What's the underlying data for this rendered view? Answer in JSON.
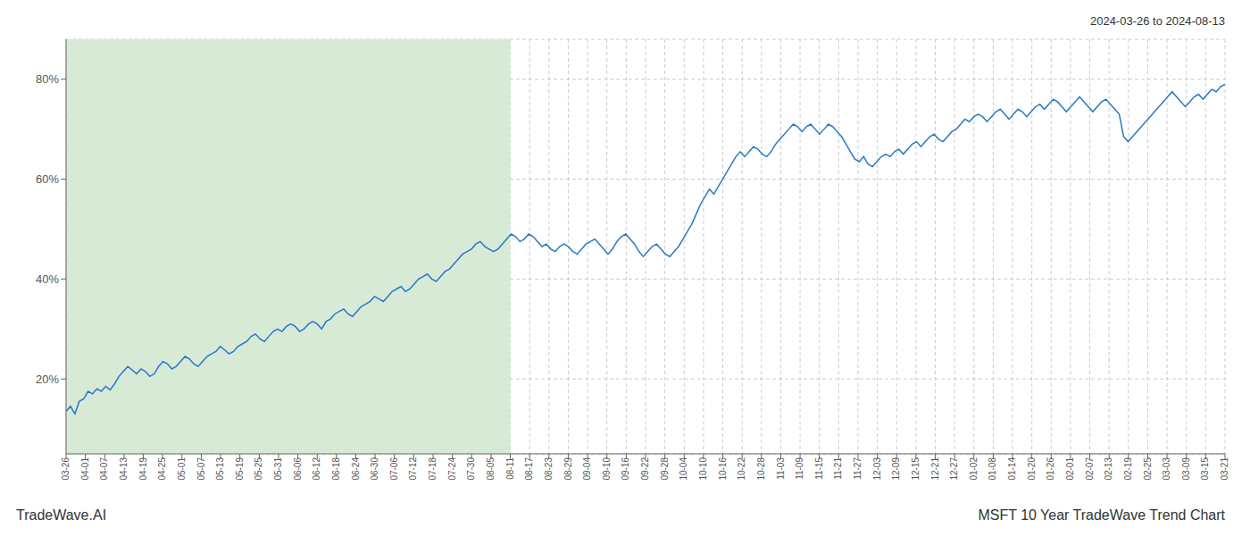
{
  "chart_data": {
    "type": "line",
    "title": "MSFT 10 Year TradeWave Trend Chart",
    "subtitle": "2024-03-26 to 2024-08-13",
    "annotations": [
      "TradeWave.AI"
    ],
    "grid": true,
    "xlim": [
      0,
      60
    ],
    "xticks": [
      {
        "value": 0,
        "label": "03-26"
      },
      {
        "value": 1,
        "label": "04-01"
      },
      {
        "value": 2,
        "label": "04-07"
      },
      {
        "value": 3,
        "label": "04-13"
      },
      {
        "value": 4,
        "label": "04-19"
      },
      {
        "value": 5,
        "label": "04-25"
      },
      {
        "value": 6,
        "label": "05-01"
      },
      {
        "value": 7,
        "label": "05-07"
      },
      {
        "value": 8,
        "label": "05-13"
      },
      {
        "value": 9,
        "label": "05-19"
      },
      {
        "value": 10,
        "label": "05-25"
      },
      {
        "value": 11,
        "label": "05-31"
      },
      {
        "value": 12,
        "label": "06-06"
      },
      {
        "value": 13,
        "label": "06-12"
      },
      {
        "value": 14,
        "label": "06-18"
      },
      {
        "value": 15,
        "label": "06-24"
      },
      {
        "value": 16,
        "label": "06-30"
      },
      {
        "value": 17,
        "label": "07-06"
      },
      {
        "value": 18,
        "label": "07-12"
      },
      {
        "value": 19,
        "label": "07-18"
      },
      {
        "value": 20,
        "label": "07-24"
      },
      {
        "value": 21,
        "label": "07-30"
      },
      {
        "value": 22,
        "label": "08-05"
      },
      {
        "value": 23,
        "label": "08-11"
      },
      {
        "value": 24,
        "label": "08-17"
      },
      {
        "value": 25,
        "label": "08-23"
      },
      {
        "value": 26,
        "label": "08-29"
      },
      {
        "value": 27,
        "label": "09-04"
      },
      {
        "value": 28,
        "label": "09-10"
      },
      {
        "value": 29,
        "label": "09-16"
      },
      {
        "value": 30,
        "label": "09-22"
      },
      {
        "value": 31,
        "label": "09-28"
      },
      {
        "value": 32,
        "label": "10-04"
      },
      {
        "value": 33,
        "label": "10-10"
      },
      {
        "value": 34,
        "label": "10-16"
      },
      {
        "value": 35,
        "label": "10-22"
      },
      {
        "value": 36,
        "label": "10-28"
      },
      {
        "value": 37,
        "label": "11-03"
      },
      {
        "value": 38,
        "label": "11-09"
      },
      {
        "value": 39,
        "label": "11-15"
      },
      {
        "value": 40,
        "label": "11-21"
      },
      {
        "value": 41,
        "label": "11-27"
      },
      {
        "value": 42,
        "label": "12-03"
      },
      {
        "value": 43,
        "label": "12-09"
      },
      {
        "value": 44,
        "label": "12-15"
      },
      {
        "value": 45,
        "label": "12-21"
      },
      {
        "value": 46,
        "label": "12-27"
      },
      {
        "value": 47,
        "label": "01-02"
      },
      {
        "value": 48,
        "label": "01-08"
      },
      {
        "value": 49,
        "label": "01-14"
      },
      {
        "value": 50,
        "label": "01-20"
      },
      {
        "value": 51,
        "label": "01-26"
      },
      {
        "value": 52,
        "label": "02-01"
      },
      {
        "value": 53,
        "label": "02-07"
      },
      {
        "value": 54,
        "label": "02-13"
      },
      {
        "value": 55,
        "label": "02-19"
      },
      {
        "value": 56,
        "label": "02-25"
      },
      {
        "value": 57,
        "label": "03-03"
      },
      {
        "value": 58,
        "label": "03-09"
      },
      {
        "value": 59,
        "label": "03-15"
      },
      {
        "value": 60,
        "label": "03-21"
      }
    ],
    "ylim": [
      5,
      88
    ],
    "yticks": [
      {
        "value": 20,
        "label": "20%"
      },
      {
        "value": 40,
        "label": "40%"
      },
      {
        "value": 60,
        "label": "60%"
      },
      {
        "value": 80,
        "label": "80%"
      }
    ],
    "shade": {
      "range": [
        0,
        23
      ],
      "color": "#d6ead6"
    },
    "color": "#2878c8",
    "values": [
      13.5,
      14.5,
      13.0,
      15.5,
      16.0,
      17.5,
      17.0,
      18.0,
      17.5,
      18.5,
      17.8,
      19.0,
      20.5,
      21.5,
      22.5,
      21.8,
      21.0,
      22.0,
      21.5,
      20.5,
      21.0,
      22.5,
      23.5,
      23.0,
      22.0,
      22.5,
      23.5,
      24.5,
      24.0,
      23.0,
      22.5,
      23.5,
      24.5,
      25.0,
      25.5,
      26.5,
      25.8,
      25.0,
      25.5,
      26.5,
      27.0,
      27.5,
      28.5,
      29.0,
      28.0,
      27.5,
      28.5,
      29.5,
      30.0,
      29.5,
      30.5,
      31.0,
      30.5,
      29.5,
      30.0,
      31.0,
      31.5,
      31.0,
      30.0,
      31.5,
      32.0,
      33.0,
      33.5,
      34.0,
      33.0,
      32.5,
      33.5,
      34.5,
      35.0,
      35.5,
      36.5,
      36.0,
      35.5,
      36.5,
      37.5,
      38.0,
      38.5,
      37.5,
      38.0,
      39.0,
      40.0,
      40.5,
      41.0,
      40.0,
      39.5,
      40.5,
      41.5,
      42.0,
      43.0,
      44.0,
      45.0,
      45.5,
      46.0,
      47.0,
      47.5,
      46.5,
      46.0,
      45.5,
      46.0,
      47.0,
      48.0,
      49.0,
      48.5,
      47.5,
      48.0,
      49.0,
      48.5,
      47.5,
      46.5,
      47.0,
      46.0,
      45.5,
      46.5,
      47.0,
      46.5,
      45.5,
      45.0,
      46.0,
      47.0,
      47.5,
      48.0,
      47.0,
      46.0,
      45.0,
      46.0,
      47.5,
      48.5,
      49.0,
      48.0,
      47.0,
      45.5,
      44.5,
      45.5,
      46.5,
      47.0,
      46.0,
      45.0,
      44.5,
      45.5,
      46.5,
      48.0,
      49.5,
      51.0,
      53.0,
      55.0,
      56.5,
      58.0,
      57.0,
      58.5,
      60.0,
      61.5,
      63.0,
      64.5,
      65.5,
      64.5,
      65.5,
      66.5,
      66.0,
      65.0,
      64.5,
      65.5,
      67.0,
      68.0,
      69.0,
      70.0,
      71.0,
      70.5,
      69.5,
      70.5,
      71.0,
      70.0,
      69.0,
      70.0,
      71.0,
      70.5,
      69.5,
      68.5,
      67.0,
      65.5,
      64.0,
      63.5,
      64.5,
      63.0,
      62.5,
      63.5,
      64.5,
      65.0,
      64.5,
      65.5,
      66.0,
      65.0,
      66.0,
      67.0,
      67.5,
      66.5,
      67.5,
      68.5,
      69.0,
      68.0,
      67.5,
      68.5,
      69.5,
      70.0,
      71.0,
      72.0,
      71.5,
      72.5,
      73.0,
      72.5,
      71.5,
      72.5,
      73.5,
      74.0,
      73.0,
      72.0,
      73.0,
      74.0,
      73.5,
      72.5,
      73.5,
      74.5,
      75.0,
      74.0,
      75.0,
      76.0,
      75.5,
      74.5,
      73.5,
      74.5,
      75.5,
      76.5,
      75.5,
      74.5,
      73.5,
      74.5,
      75.5,
      76.0,
      75.0,
      74.0,
      73.0,
      68.5,
      67.5,
      68.5,
      69.5,
      70.5,
      71.5,
      72.5,
      73.5,
      74.5,
      75.5,
      76.5,
      77.5,
      76.5,
      75.5,
      74.5,
      75.5,
      76.5,
      77.0,
      76.0,
      77.0,
      78.0,
      77.5,
      78.5,
      79.0
    ]
  }
}
